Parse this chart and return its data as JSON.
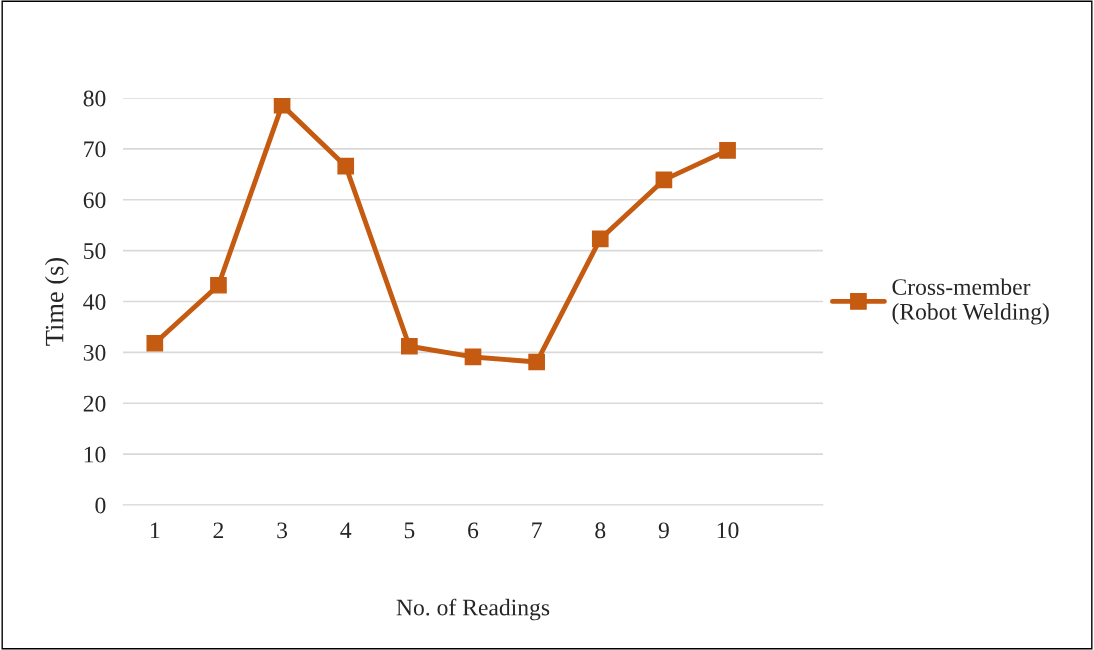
{
  "chart_data": {
    "type": "line",
    "xlabel": "No. of Readings",
    "ylabel": "Time (s)",
    "categories": [
      "1",
      "2",
      "3",
      "4",
      "5",
      "6",
      "7",
      "8",
      "9",
      "10",
      null
    ],
    "series": [
      {
        "name": "Cross-member\n(Robot Welding)",
        "color": "#c55a11",
        "values": [
          31.8,
          43.2,
          78.6,
          66.6,
          31.2,
          29.1,
          28.1,
          52.3,
          63.9,
          69.7,
          null
        ]
      }
    ],
    "ylim": [
      0,
      80
    ],
    "yticks": [
      0,
      10,
      20,
      30,
      40,
      50,
      60,
      70,
      80
    ],
    "grid": "y",
    "legend": "right",
    "marker": "square",
    "line_style": "solid"
  }
}
